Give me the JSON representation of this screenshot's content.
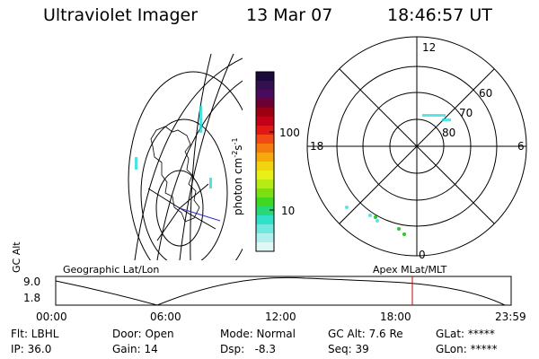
{
  "header": {
    "instrument": "Ultraviolet Imager",
    "date": "13 Mar 07",
    "time": "18:46:57 UT"
  },
  "colorbar": {
    "unit_text": "photon cm",
    "unit_exp1": "-2",
    "unit_s": "s",
    "unit_exp2": "-1",
    "ticks": [
      "100",
      "10"
    ],
    "colors": [
      "#1a0a3a",
      "#33104f",
      "#4a0b5e",
      "#6a0034",
      "#9a0010",
      "#c20018",
      "#e01818",
      "#f24a14",
      "#f57a10",
      "#f7a80d",
      "#f0d410",
      "#e8f018",
      "#b8ea14",
      "#7ede10",
      "#3ed820",
      "#28d878",
      "#30e0c8",
      "#70e8e0",
      "#b0f0ec",
      "#dff8f6"
    ]
  },
  "polar": {
    "hour_labels": [
      "12",
      "18",
      "6",
      "0"
    ],
    "lat_labels": [
      "60",
      "70",
      "80"
    ],
    "accent": "#22dddd"
  },
  "timeline": {
    "left_caption": "Geographic Lat/Lon",
    "right_caption": "Apex MLat/MLT",
    "axis_title": "GC Alt",
    "y_top": "9.0",
    "y_bottom": "1.8",
    "x_ticks": [
      "00:00",
      "06:00",
      "12:00",
      "18:00",
      "23:59"
    ],
    "current_marker_color": "#cc0000"
  },
  "status": {
    "flt": "Flt: LBHL",
    "ip": "IP: 36.0",
    "door": "Door: Open",
    "gain": "Gain: 14",
    "mode": "Mode: Normal",
    "dsp": "Dsp:   -8.3",
    "gcalt": "GC Alt: 7.6 Re",
    "seq": "Seq: 39",
    "glat": "GLat: *****",
    "glon": "GLon: *****"
  }
}
